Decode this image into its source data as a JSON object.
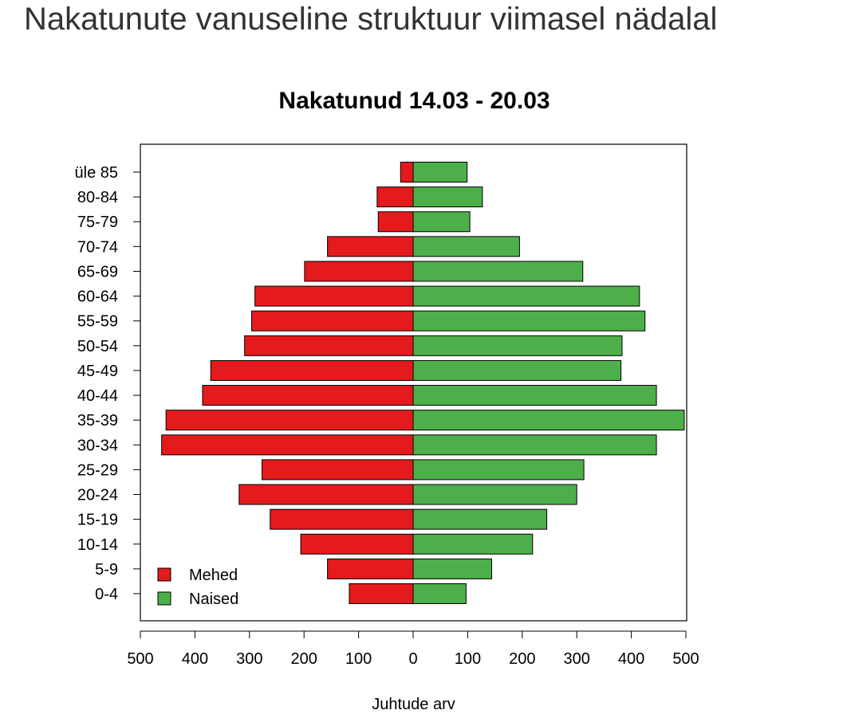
{
  "page": {
    "title": "Nakatunute vanuseline struktuur viimasel nädalal"
  },
  "chart_data": {
    "type": "bar",
    "orientation": "horizontal-population-pyramid",
    "title": "Nakatunud 14.03 - 20.03",
    "xlabel": "Juhtude arv",
    "ylabel": "",
    "xlim": [
      -500,
      500
    ],
    "x_ticks": [
      -500,
      -400,
      -300,
      -200,
      -100,
      0,
      100,
      200,
      300,
      400,
      500
    ],
    "x_tick_labels": [
      "500",
      "400",
      "300",
      "200",
      "100",
      "0",
      "100",
      "200",
      "300",
      "400",
      "500"
    ],
    "categories": [
      "0-4",
      "5-9",
      "10-14",
      "15-19",
      "20-24",
      "25-29",
      "30-34",
      "35-39",
      "40-44",
      "45-49",
      "50-54",
      "55-59",
      "60-64",
      "65-69",
      "70-74",
      "75-79",
      "80-84",
      "üle 85"
    ],
    "series": [
      {
        "name": "Mehed",
        "color": "#e41a1c",
        "values": [
          117,
          157,
          206,
          262,
          319,
          277,
          461,
          453,
          386,
          371,
          309,
          296,
          290,
          199,
          157,
          64,
          66,
          23
        ]
      },
      {
        "name": "Naised",
        "color": "#4daf4a",
        "values": [
          97,
          144,
          219,
          245,
          300,
          313,
          446,
          497,
          446,
          381,
          383,
          425,
          415,
          311,
          195,
          104,
          127,
          99
        ]
      }
    ],
    "legend": {
      "position": "bottom-left"
    },
    "grid": false
  }
}
